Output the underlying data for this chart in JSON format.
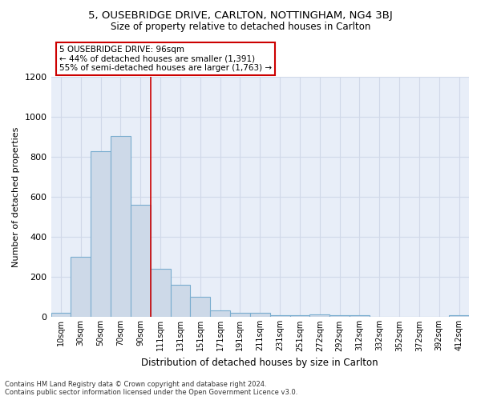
{
  "title1": "5, OUSEBRIDGE DRIVE, CARLTON, NOTTINGHAM, NG4 3BJ",
  "title2": "Size of property relative to detached houses in Carlton",
  "xlabel": "Distribution of detached houses by size in Carlton",
  "ylabel": "Number of detached properties",
  "bar_color": "#cdd9e8",
  "bar_edge_color": "#7aadcf",
  "grid_color": "#d0d8e8",
  "bg_color": "#e8eef8",
  "categories": [
    "10sqm",
    "30sqm",
    "50sqm",
    "70sqm",
    "90sqm",
    "111sqm",
    "131sqm",
    "151sqm",
    "171sqm",
    "191sqm",
    "211sqm",
    "231sqm",
    "251sqm",
    "272sqm",
    "292sqm",
    "312sqm",
    "332sqm",
    "352sqm",
    "372sqm",
    "392sqm",
    "412sqm"
  ],
  "values": [
    20,
    300,
    830,
    905,
    560,
    240,
    160,
    100,
    33,
    20,
    20,
    10,
    10,
    12,
    10,
    10,
    0,
    0,
    0,
    0,
    10
  ],
  "vline_color": "#cc0000",
  "vline_x": 4.5,
  "annotation_text": "5 OUSEBRIDGE DRIVE: 96sqm\n← 44% of detached houses are smaller (1,391)\n55% of semi-detached houses are larger (1,763) →",
  "annotation_box_color": "#ffffff",
  "annotation_border_color": "#cc0000",
  "ylim": [
    0,
    1200
  ],
  "yticks": [
    0,
    200,
    400,
    600,
    800,
    1000,
    1200
  ],
  "title1_fontsize": 9.5,
  "title2_fontsize": 8.5,
  "footer": "Contains HM Land Registry data © Crown copyright and database right 2024.\nContains public sector information licensed under the Open Government Licence v3.0."
}
